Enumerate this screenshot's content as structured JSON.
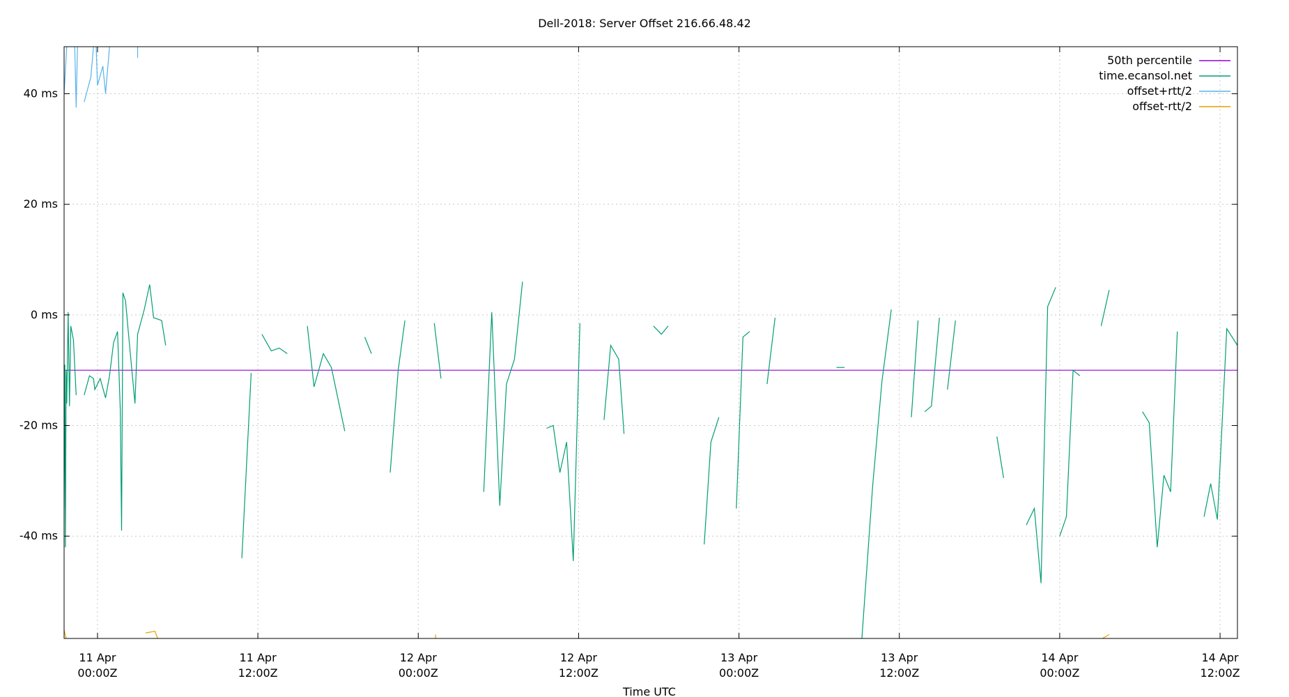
{
  "chart_data": {
    "type": "line",
    "title": "Dell-2018: Server Offset 216.66.48.42",
    "xlabel": "Time UTC",
    "ylabel": "",
    "ylim": [
      -58.5,
      48.5
    ],
    "y_ticks": [
      {
        "value": 40,
        "label": "40 ms"
      },
      {
        "value": 20,
        "label": "20 ms"
      },
      {
        "value": 0,
        "label": "0 ms"
      },
      {
        "value": -20,
        "label": "-20 ms"
      },
      {
        "value": -40,
        "label": "-40 ms"
      }
    ],
    "x_range_hours": [
      -2.5,
      85.3
    ],
    "x_ticks": [
      {
        "hour": 0,
        "date": "11 Apr",
        "time": "00:00Z"
      },
      {
        "hour": 12,
        "date": "11 Apr",
        "time": "12:00Z"
      },
      {
        "hour": 24,
        "date": "12 Apr",
        "time": "00:00Z"
      },
      {
        "hour": 36,
        "date": "12 Apr",
        "time": "12:00Z"
      },
      {
        "hour": 48,
        "date": "13 Apr",
        "time": "00:00Z"
      },
      {
        "hour": 60,
        "date": "13 Apr",
        "time": "12:00Z"
      },
      {
        "hour": 72,
        "date": "14 Apr",
        "time": "00:00Z"
      },
      {
        "hour": 84,
        "date": "14 Apr",
        "time": "12:00Z"
      }
    ],
    "grid": true,
    "legend_position": "top-right",
    "median": -10,
    "series": [
      {
        "name": "50th percentile",
        "color": "#9400d3",
        "segments": [
          [
            [
              -2.5,
              -10
            ],
            [
              85.3,
              -10
            ]
          ]
        ]
      },
      {
        "name": "time.ecansol.net",
        "color": "#009e73",
        "segments": [
          [
            [
              -2.5,
              -35
            ],
            [
              -2.45,
              -9
            ],
            [
              -2.4,
              -42
            ],
            [
              -2.35,
              -10
            ],
            [
              -2.3,
              -16
            ],
            [
              -2.2,
              0.5
            ],
            [
              -2.1,
              -16.5
            ],
            [
              -2.0,
              -2
            ],
            [
              -1.8,
              -4.5
            ],
            [
              -1.6,
              -14.5
            ]
          ],
          [
            [
              -1.0,
              -14.5
            ],
            [
              -0.6,
              -11
            ],
            [
              -0.3,
              -11.5
            ],
            [
              -0.2,
              -13.5
            ],
            [
              0.2,
              -11.5
            ],
            [
              0.6,
              -15
            ],
            [
              0.9,
              -11
            ],
            [
              1.2,
              -5
            ],
            [
              1.5,
              -3
            ],
            [
              1.7,
              -17
            ],
            [
              1.8,
              -39
            ],
            [
              1.9,
              4
            ],
            [
              2.1,
              2.5
            ],
            [
              2.3,
              -3
            ],
            [
              2.8,
              -16
            ],
            [
              3.0,
              -3.5
            ],
            [
              3.5,
              1
            ],
            [
              3.9,
              5.5
            ],
            [
              4.2,
              -0.5
            ],
            [
              4.8,
              -1
            ],
            [
              5.1,
              -5.5
            ]
          ],
          [
            [
              10.8,
              -44
            ],
            [
              11.5,
              -10.5
            ]
          ],
          [
            [
              12.3,
              -3.5
            ],
            [
              13.0,
              -6.5
            ],
            [
              13.6,
              -6
            ],
            [
              14.2,
              -7
            ]
          ],
          [
            [
              15.7,
              -2
            ],
            [
              16.2,
              -13
            ],
            [
              16.9,
              -7
            ],
            [
              17.5,
              -9.5
            ],
            [
              18.5,
              -21
            ]
          ],
          [
            [
              20.0,
              -4
            ],
            [
              20.5,
              -7
            ]
          ],
          [
            [
              21.9,
              -28.5
            ],
            [
              22.5,
              -10
            ],
            [
              23.0,
              -1
            ]
          ],
          [
            [
              25.2,
              -1.5
            ],
            [
              25.3,
              -3.5
            ],
            [
              25.7,
              -11.5
            ]
          ],
          [
            [
              28.9,
              -32
            ],
            [
              29.5,
              0.5
            ],
            [
              30.1,
              -34.5
            ],
            [
              30.6,
              -12.5
            ],
            [
              31.2,
              -8
            ],
            [
              31.8,
              6
            ]
          ],
          [
            [
              33.6,
              -20.5
            ],
            [
              34.1,
              -20
            ],
            [
              34.6,
              -28.5
            ],
            [
              35.1,
              -23
            ],
            [
              35.6,
              -44.5
            ],
            [
              36.1,
              -1.5
            ]
          ],
          [
            [
              37.9,
              -19
            ],
            [
              38.4,
              -5.5
            ],
            [
              39.0,
              -8
            ],
            [
              39.4,
              -21.5
            ]
          ],
          [
            [
              41.6,
              -2
            ],
            [
              42.2,
              -3.5
            ],
            [
              42.7,
              -2
            ]
          ],
          [
            [
              45.4,
              -41.5
            ],
            [
              45.9,
              -23
            ],
            [
              46.5,
              -18.5
            ]
          ],
          [
            [
              47.8,
              -35
            ],
            [
              48.3,
              -4
            ],
            [
              48.8,
              -3
            ]
          ],
          [
            [
              50.1,
              -12.5
            ],
            [
              50.7,
              -0.5
            ]
          ],
          [
            [
              55.3,
              -9.5
            ],
            [
              55.9,
              -9.5
            ]
          ],
          [
            [
              57.2,
              -58.5
            ],
            [
              58.0,
              -31
            ],
            [
              58.7,
              -12
            ],
            [
              59.4,
              1
            ]
          ],
          [
            [
              60.9,
              -18.5
            ],
            [
              61.4,
              -1
            ]
          ],
          [
            [
              61.9,
              -17.5
            ],
            [
              62.4,
              -16.5
            ],
            [
              63.0,
              -0.5
            ]
          ],
          [
            [
              63.6,
              -13.5
            ],
            [
              64.2,
              -1
            ]
          ],
          [
            [
              67.3,
              -22
            ],
            [
              67.8,
              -29.5
            ]
          ],
          [
            [
              69.5,
              -38
            ],
            [
              70.1,
              -35
            ],
            [
              70.6,
              -48.5
            ],
            [
              71.1,
              1.5
            ],
            [
              71.7,
              5
            ]
          ],
          [
            [
              72.0,
              -40
            ],
            [
              72.5,
              -36.5
            ],
            [
              73.0,
              -10
            ],
            [
              73.5,
              -11
            ]
          ],
          [
            [
              75.1,
              -2
            ],
            [
              75.7,
              4.5
            ]
          ],
          [
            [
              78.2,
              -17.5
            ],
            [
              78.7,
              -19.5
            ],
            [
              79.3,
              -42
            ],
            [
              79.8,
              -29
            ],
            [
              80.3,
              -32
            ],
            [
              80.8,
              -3
            ]
          ],
          [
            [
              82.8,
              -36.5
            ],
            [
              83.3,
              -30.5
            ],
            [
              83.8,
              -37
            ],
            [
              84.5,
              -2.5
            ],
            [
              85.3,
              -5.5
            ]
          ]
        ]
      },
      {
        "name": "offset+rtt/2",
        "color": "#56b4e9",
        "segments": [
          [
            [
              -2.5,
              40
            ],
            [
              -2.3,
              48.5
            ]
          ],
          [
            [
              -1.7,
              48.5
            ],
            [
              -1.6,
              37.5
            ],
            [
              -1.5,
              48.5
            ]
          ],
          [
            [
              -1.0,
              38.5
            ],
            [
              -0.5,
              43
            ],
            [
              -0.3,
              48.5
            ]
          ],
          [
            [
              -0.1,
              48.5
            ],
            [
              0.0,
              41.5
            ],
            [
              0.4,
              45
            ],
            [
              0.6,
              40
            ],
            [
              0.9,
              48.5
            ]
          ],
          [
            [
              3.0,
              46.5
            ],
            [
              3.0,
              48.5
            ]
          ]
        ]
      },
      {
        "name": "offset-rtt/2",
        "color": "#e69f00",
        "segments": [
          [
            [
              -2.5,
              -57
            ],
            [
              -2.35,
              -58.5
            ]
          ],
          [
            [
              3.6,
              -57.5
            ],
            [
              4.3,
              -57.2
            ],
            [
              4.5,
              -58.5
            ]
          ],
          [
            [
              25.3,
              -58.5
            ],
            [
              25.3,
              -57.8
            ]
          ],
          [
            [
              75.2,
              -58.5
            ],
            [
              75.7,
              -57.8
            ]
          ]
        ]
      }
    ]
  }
}
